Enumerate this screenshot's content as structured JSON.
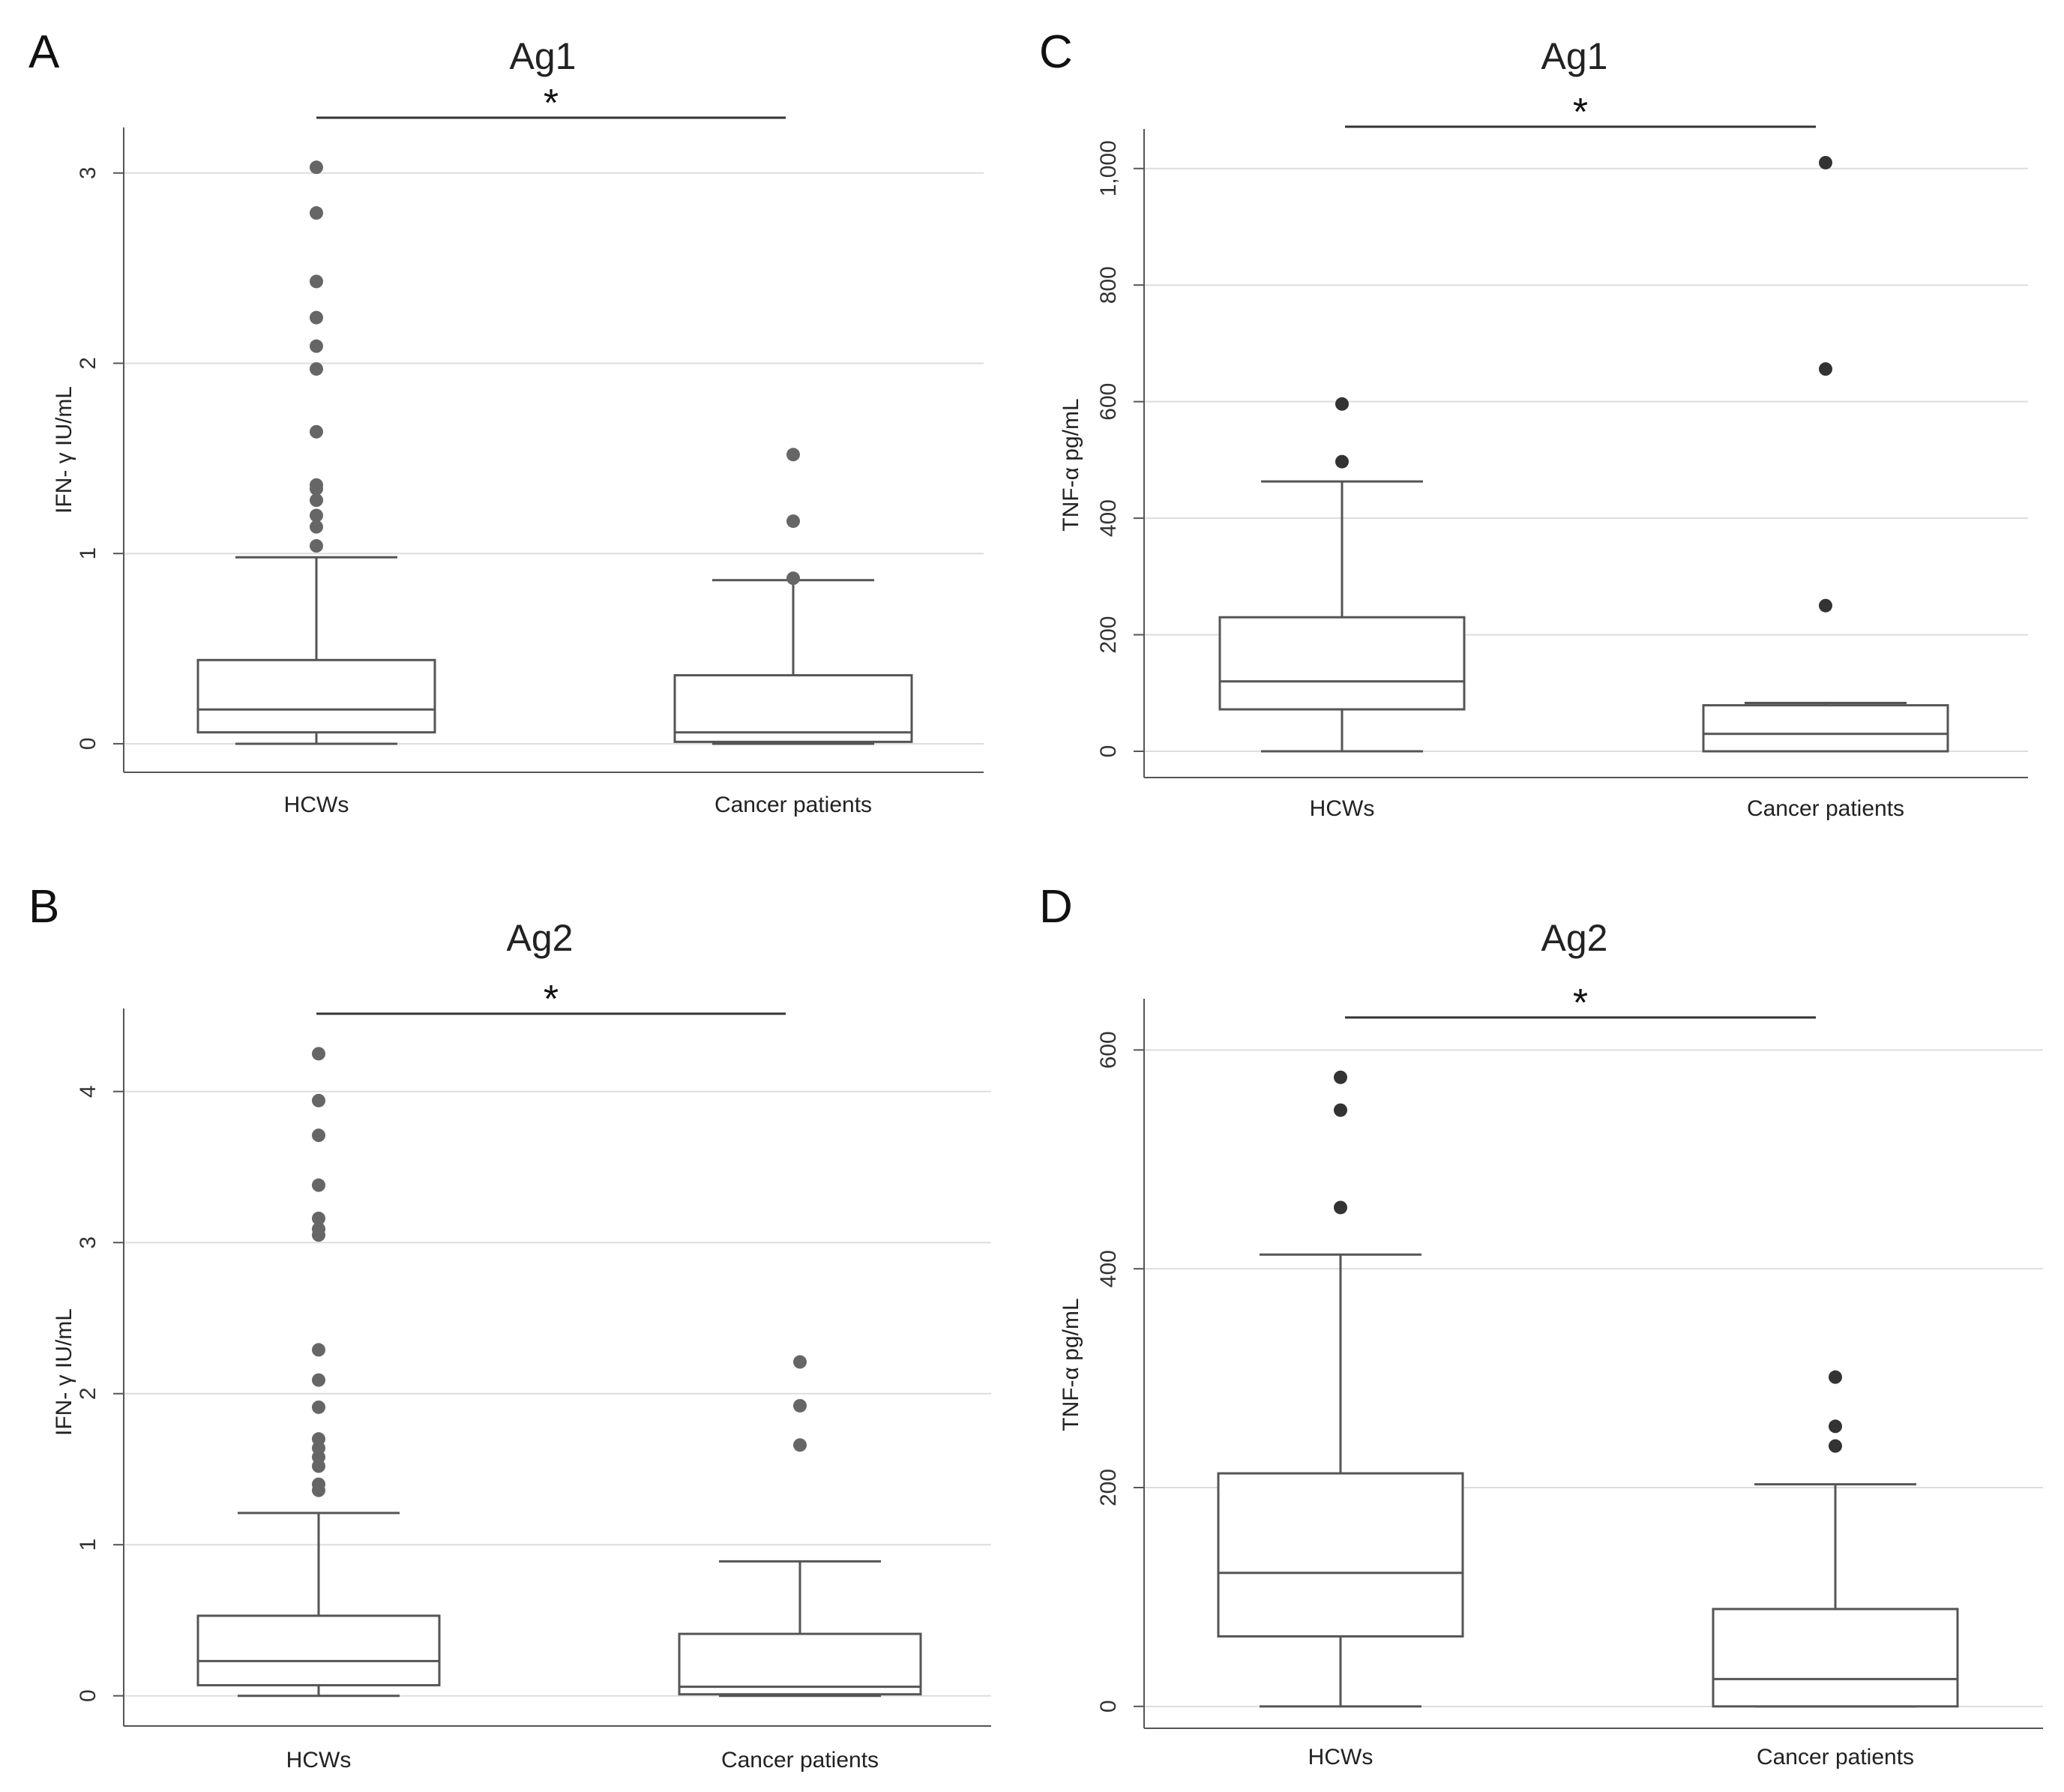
{
  "figure": {
    "colors": {
      "box": "#555555",
      "grid": "#dddddd",
      "axis": "#555555",
      "outlier_light": "#666666",
      "outlier_dark": "#333333"
    }
  },
  "chart_data": [
    {
      "id": "A",
      "panel_label": "A",
      "type": "box",
      "title": "Ag1",
      "ylabel": "IFN- γ IU/mL",
      "xlabel": "",
      "ylim": [
        -0.15,
        3.2
      ],
      "yticks": [
        0,
        1,
        2,
        3
      ],
      "ytick_labels": [
        "0",
        "1",
        "2",
        "3"
      ],
      "grid": true,
      "categories": [
        "HCWs",
        "Cancer patients"
      ],
      "boxes": [
        {
          "min": 0,
          "q1": 0.06,
          "median": 0.18,
          "q3": 0.44,
          "max": 0.98,
          "outliers": [
            1.04,
            1.14,
            1.2,
            1.28,
            1.34,
            1.36,
            1.64,
            1.97,
            2.09,
            2.24,
            2.43,
            2.79,
            3.03
          ]
        },
        {
          "min": 0,
          "q1": 0.01,
          "median": 0.06,
          "q3": 0.36,
          "max": 0.86,
          "outliers": [
            0.87,
            1.17,
            1.52
          ]
        }
      ],
      "significance": "*"
    },
    {
      "id": "B",
      "panel_label": "B",
      "type": "box",
      "title": "Ag2",
      "ylabel": "IFN- γ IU/mL",
      "xlabel": "",
      "ylim": [
        -0.2,
        4.5
      ],
      "yticks": [
        0,
        1,
        2,
        3,
        4
      ],
      "ytick_labels": [
        "0",
        "1",
        "2",
        "3",
        "4"
      ],
      "grid": true,
      "categories": [
        "HCWs",
        "Cancer patients"
      ],
      "boxes": [
        {
          "min": 0,
          "q1": 0.07,
          "median": 0.23,
          "q3": 0.53,
          "max": 1.21,
          "outliers": [
            1.36,
            1.4,
            1.52,
            1.58,
            1.64,
            1.7,
            1.91,
            2.09,
            2.29,
            3.05,
            3.09,
            3.16,
            3.38,
            3.71,
            3.94,
            4.25
          ]
        },
        {
          "min": 0,
          "q1": 0.01,
          "median": 0.06,
          "q3": 0.41,
          "max": 0.89,
          "outliers": [
            1.66,
            1.92,
            2.21
          ]
        }
      ],
      "significance": "*"
    },
    {
      "id": "C",
      "panel_label": "C",
      "type": "box",
      "title": "Ag1",
      "ylabel": "TNF-α  pg/mL",
      "xlabel": "",
      "ylim": [
        -45,
        1055
      ],
      "yticks": [
        0,
        200,
        400,
        600,
        800,
        1000
      ],
      "ytick_labels": [
        "0",
        "200",
        "400",
        "600",
        "800",
        "1,000"
      ],
      "grid": true,
      "categories": [
        "HCWs",
        "Cancer patients"
      ],
      "boxes": [
        {
          "min": 0,
          "q1": 72,
          "median": 120,
          "q3": 230,
          "max": 463,
          "outliers": [
            497,
            596
          ]
        },
        {
          "min": 0,
          "q1": 0,
          "median": 30,
          "q3": 79,
          "max": 83,
          "outliers": [
            250,
            656,
            1010
          ]
        }
      ],
      "significance": "*"
    },
    {
      "id": "D",
      "panel_label": "D",
      "type": "box",
      "title": "Ag2",
      "ylabel": "TNF-α  pg/mL",
      "xlabel": "",
      "ylim": [
        -20,
        640
      ],
      "yticks": [
        0,
        200,
        400,
        600
      ],
      "ytick_labels": [
        "0",
        "200",
        "400",
        "600"
      ],
      "grid": true,
      "categories": [
        "HCWs",
        "Cancer patients"
      ],
      "boxes": [
        {
          "min": 0,
          "q1": 64,
          "median": 122,
          "q3": 213,
          "max": 413,
          "outliers": [
            456,
            545,
            575
          ]
        },
        {
          "min": 0,
          "q1": 0,
          "median": 25,
          "q3": 89,
          "max": 203,
          "outliers": [
            238,
            256,
            301
          ]
        }
      ],
      "significance": "*"
    }
  ]
}
